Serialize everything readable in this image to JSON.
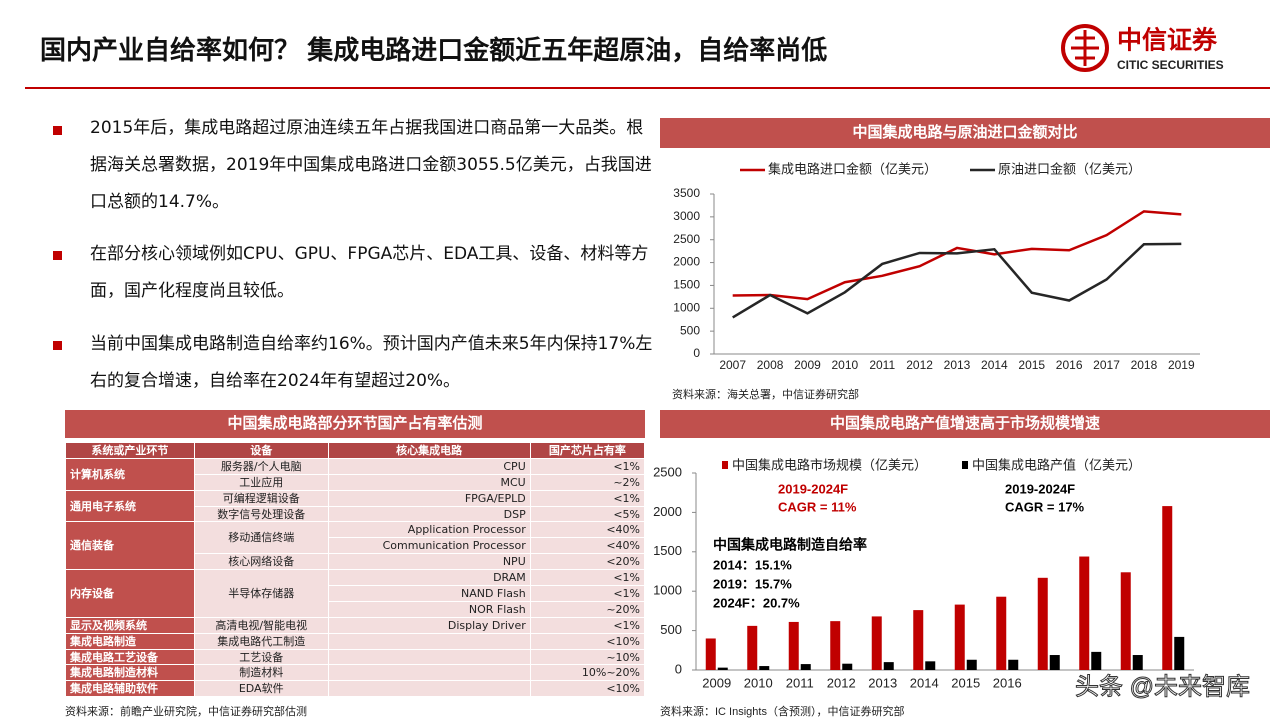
{
  "header": {
    "title": "国内产业自给率如何？ 集成电路进口金额近五年超原油，自给率尚低",
    "logo_cn": "中信证券",
    "logo_en": "CITIC SECURITIES"
  },
  "bullets": [
    "2015年后，集成电路超过原油连续五年占据我国进口商品第一大品类。根据海关总署数据，2019年中国集成电路进口金额3055.5亿美元，占我国进口总额的14.7%。",
    "在部分核心领域例如CPU、GPU、FPGA芯片、EDA工具、设备、材料等方面，国产化程度尚且较低。",
    "当前中国集成电路制造自给率约16%。预计国内产值未来5年内保持17%左右的复合增速，自给率在2024年有望超过20%。"
  ],
  "table": {
    "title": "中国集成电路部分环节国产占有率估测",
    "columns": [
      "系统或产业环节",
      "设备",
      "核心集成电路",
      "国产芯片占有率"
    ],
    "groups": [
      {
        "system": "计算机系统",
        "devices": [
          {
            "name": "服务器/个人电脑",
            "chips": [
              {
                "name": "CPU",
                "share": "<1%"
              }
            ]
          },
          {
            "name": "工业应用",
            "chips": [
              {
                "name": "MCU",
                "share": "~2%"
              }
            ]
          }
        ]
      },
      {
        "system": "通用电子系统",
        "devices": [
          {
            "name": "可编程逻辑设备",
            "chips": [
              {
                "name": "FPGA/EPLD",
                "share": "<1%"
              }
            ]
          },
          {
            "name": "数字信号处理设备",
            "chips": [
              {
                "name": "DSP",
                "share": "<5%"
              }
            ]
          }
        ]
      },
      {
        "system": "通信装备",
        "devices": [
          {
            "name": "移动通信终端",
            "chips": [
              {
                "name": "Application Processor",
                "share": "<40%"
              },
              {
                "name": "Communication Processor",
                "share": "<40%"
              }
            ]
          },
          {
            "name": "核心网络设备",
            "chips": [
              {
                "name": "NPU",
                "share": "<20%"
              }
            ]
          }
        ]
      },
      {
        "system": "内存设备",
        "devices": [
          {
            "name": "半导体存储器",
            "chips": [
              {
                "name": "DRAM",
                "share": "<1%"
              },
              {
                "name": "NAND Flash",
                "share": "<1%"
              },
              {
                "name": "NOR Flash",
                "share": "~20%"
              }
            ]
          }
        ]
      },
      {
        "system": "显示及视频系统",
        "devices": [
          {
            "name": "高清电视/智能电视",
            "chips": [
              {
                "name": "Display Driver",
                "share": "<1%"
              }
            ]
          }
        ]
      },
      {
        "system": "集成电路制造",
        "devices": [
          {
            "name": "集成电路代工制造",
            "share": "<10%"
          }
        ]
      },
      {
        "system": "集成电路工艺设备",
        "devices": [
          {
            "name": "工艺设备",
            "share": "~10%"
          }
        ]
      },
      {
        "system": "集成电路制造材料",
        "devices": [
          {
            "name": "制造材料",
            "share": "10%~20%"
          }
        ]
      },
      {
        "system": "集成电路辅助软件",
        "devices": [
          {
            "name": "EDA软件",
            "share": "<10%"
          }
        ]
      }
    ],
    "source": "资料来源：前瞻产业研究院，中信证券研究部估测"
  },
  "chart_data": [
    {
      "type": "line",
      "title": "中国集成电路与原油进口金额对比",
      "categories": [
        "2007",
        "2008",
        "2009",
        "2010",
        "2011",
        "2012",
        "2013",
        "2014",
        "2015",
        "2016",
        "2017",
        "2018",
        "2019"
      ],
      "series": [
        {
          "name": "集成电路进口金额（亿美元）",
          "color": "#c00000",
          "values": [
            1280,
            1290,
            1200,
            1570,
            1710,
            1920,
            2320,
            2180,
            2300,
            2270,
            2600,
            3120,
            3055.5
          ]
        },
        {
          "name": "原油进口金额（亿美元）",
          "color": "#262626",
          "values": [
            800,
            1290,
            890,
            1350,
            1970,
            2210,
            2200,
            2290,
            1340,
            1170,
            1630,
            2400,
            2410
          ]
        }
      ],
      "ylim": [
        0,
        3500
      ],
      "yticks": [
        0,
        500,
        1000,
        1500,
        2000,
        2500,
        3000,
        3500
      ],
      "source": "资料来源：海关总署，中信证券研究部"
    },
    {
      "type": "bar",
      "title": "中国集成电路产值增速高于市场规模增速",
      "categories": [
        "2009",
        "2010",
        "2011",
        "2012",
        "2013",
        "2014",
        "2015",
        "2016",
        null,
        null,
        null,
        null
      ],
      "series": [
        {
          "name": "中国集成电路市场规模（亿美元）",
          "color": "#c00000",
          "values": [
            400,
            560,
            610,
            620,
            680,
            760,
            830,
            930,
            1170,
            1440,
            1240,
            2080
          ]
        },
        {
          "name": "中国集成电路产值（亿美元）",
          "color": "#000000",
          "values": [
            30,
            50,
            75,
            80,
            100,
            110,
            130,
            130,
            190,
            230,
            190,
            420
          ]
        }
      ],
      "ylim": [
        0,
        2500
      ],
      "yticks": [
        0,
        500,
        1000,
        1500,
        2000,
        2500
      ],
      "annotations": [
        "2019-2024F",
        "CAGR = 11%",
        "2019-2024F",
        "CAGR = 17%",
        "中国集成电路制造自给率",
        "2014：15.1%",
        "2019：15.7%",
        "2024F：20.7%"
      ],
      "source": "资料来源：IC Insights（含预测），中信证券研究部"
    }
  ],
  "watermark": "头条 @未来智库"
}
